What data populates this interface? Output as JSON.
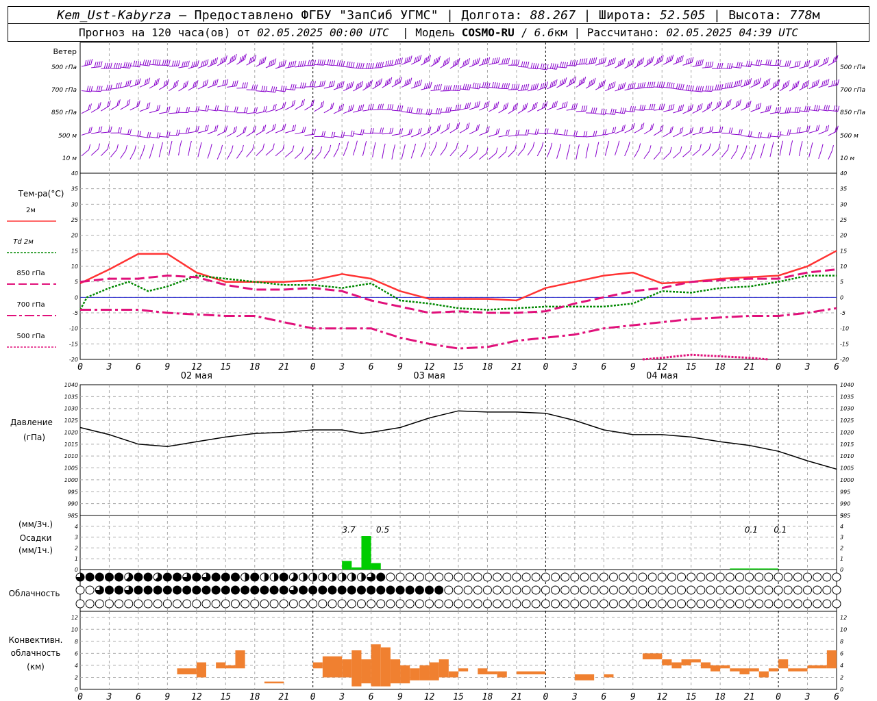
{
  "header": {
    "station": "Kem_Ust-Kabyrza",
    "provider": "Предоставлено ФГБУ \"ЗапСиб УГМС\"",
    "lon_label": "Долгота:",
    "lon": "88.267",
    "lat_label": "Широта:",
    "lat": "52.505",
    "alt_label": "Высота:",
    "alt": "778",
    "alt_unit": "м",
    "forecast_label": "Прогноз на 120 часа(ов) от",
    "forecast_from": "02.05.2025 00:00 UTC",
    "model_label": "Модель",
    "model": "COSMO-RU",
    "model_res": "6.6",
    "model_res_unit": "км",
    "calc_label": "Рассчитано:",
    "calc_time": "02.05.2025 04:39 UTC"
  },
  "panels": {
    "wind": {
      "title": "Ветер",
      "levels": [
        "500 гПа",
        "700 гПа",
        "850 гПа",
        "500  м",
        "10   м"
      ]
    },
    "temp": {
      "title": "Тем-ра(°C)",
      "legend": [
        "2м",
        "Td  2м",
        "850 гПа",
        "700 гПа",
        "500 гПа"
      ],
      "legend_colors": [
        "#ff3333",
        "#008800",
        "#e0107a",
        "#e0107a",
        "#e0107a"
      ]
    },
    "pressure": {
      "title1": "Давление",
      "title2": "(гПа)"
    },
    "precip": {
      "title1": "(мм/3ч.)",
      "title2": "Осадки",
      "title3": "(мм/1ч.)",
      "annotations": [
        "3.7",
        "0.5",
        "0.1",
        "0.1"
      ]
    },
    "cloud": {
      "title": "Облачность"
    },
    "conv": {
      "title1": "Конвективн.",
      "title2": "облачность",
      "title3": "(км)"
    }
  },
  "x_axis": {
    "hour_labels": [
      "0",
      "3",
      "6",
      "9",
      "12",
      "15",
      "18",
      "21",
      "0",
      "3",
      "6",
      "9",
      "12",
      "15",
      "18",
      "21",
      "0",
      "3",
      "6",
      "9",
      "12",
      "15",
      "18",
      "21",
      "0",
      "3",
      "6"
    ],
    "day_labels": [
      "02 мая",
      "03 мая",
      "04 мая"
    ]
  },
  "chart_data": [
    {
      "type": "line",
      "title": "Тем-ра(°C)",
      "x_unit": "hours since 02.05.2025 00:00 UTC",
      "ylim": [
        -20,
        40
      ],
      "y_ticks": [
        -20,
        -15,
        -10,
        -5,
        0,
        5,
        10,
        15,
        20,
        25,
        30,
        35,
        40
      ],
      "series": [
        {
          "name": "2м",
          "color": "#ff3333",
          "x": [
            0,
            3,
            6,
            9,
            12,
            15,
            18,
            21,
            24,
            27,
            30,
            33,
            36,
            39,
            42,
            45,
            48,
            51,
            54,
            57,
            60,
            63,
            66,
            69,
            72,
            75,
            78
          ],
          "y": [
            4.5,
            9,
            14,
            14,
            8,
            5,
            5,
            5,
            5.5,
            7.5,
            6,
            2,
            -0.5,
            -0.5,
            -0.5,
            -1,
            3,
            5,
            7,
            8,
            4.5,
            5,
            6,
            6.5,
            7,
            10,
            15
          ]
        },
        {
          "name": "Td  2м",
          "color": "#008800",
          "x": [
            0,
            0.7,
            3,
            5,
            7,
            9,
            12,
            15,
            18,
            21,
            24,
            27,
            30,
            33,
            36,
            39,
            42,
            45,
            48,
            51,
            54,
            57,
            60,
            63,
            66,
            69,
            72,
            75,
            78
          ],
          "y": [
            -4,
            0,
            3,
            5,
            2,
            3.5,
            7,
            6,
            5,
            4,
            4,
            3,
            4.5,
            -1,
            -2,
            -3.5,
            -4,
            -3.5,
            -3,
            -3,
            -3,
            -2,
            2,
            1.5,
            3,
            3.5,
            5,
            7,
            7
          ]
        },
        {
          "name": "850 гПа",
          "color": "#e0107a",
          "x": [
            0,
            3,
            6,
            9,
            12,
            15,
            18,
            21,
            24,
            27,
            30,
            33,
            36,
            39,
            42,
            45,
            48,
            51,
            54,
            57,
            60,
            63,
            66,
            69,
            72,
            75,
            78
          ],
          "y": [
            5,
            6,
            6,
            7,
            6.5,
            4,
            2.5,
            2.5,
            3,
            2,
            -1,
            -3,
            -5,
            -4.5,
            -5,
            -5,
            -4.5,
            -2,
            0,
            2,
            3,
            5,
            5.5,
            6,
            6,
            8,
            9
          ]
        },
        {
          "name": "700 гПа",
          "color": "#e0107a",
          "x": [
            0,
            3,
            6,
            9,
            12,
            15,
            18,
            21,
            24,
            27,
            30,
            33,
            36,
            39,
            42,
            45,
            48,
            51,
            54,
            57,
            60,
            63,
            66,
            69,
            72,
            75,
            78
          ],
          "y": [
            -4,
            -4,
            -4,
            -5,
            -5.5,
            -6,
            -6,
            -8,
            -10,
            -10,
            -10,
            -13,
            -15,
            -16.5,
            -16,
            -14,
            -13,
            -12,
            -10,
            -9,
            -8,
            -7,
            -6.5,
            -6,
            -6,
            -5,
            -3.5
          ]
        },
        {
          "name": "500 гПа",
          "color": "#e0107a",
          "x": [
            58,
            60,
            63,
            66,
            69,
            71
          ],
          "y": [
            -20,
            -19.5,
            -18.5,
            -19,
            -19.5,
            -20
          ]
        }
      ]
    },
    {
      "type": "line",
      "title": "Давление",
      "ylabel": "(гПа)",
      "ylim": [
        985,
        1040
      ],
      "y_ticks": [
        985,
        990,
        995,
        1000,
        1005,
        1010,
        1015,
        1020,
        1025,
        1030,
        1035,
        1040
      ],
      "series": [
        {
          "name": "",
          "color": "#000000",
          "x": [
            0,
            3,
            6,
            9,
            12,
            15,
            18,
            21,
            24,
            27,
            29,
            30,
            33,
            36,
            39,
            42,
            45,
            48,
            51,
            54,
            57,
            60,
            63,
            66,
            69,
            72,
            75,
            78
          ],
          "y": [
            1022,
            1019,
            1015,
            1014,
            1016,
            1018,
            1019.5,
            1020,
            1021,
            1021,
            1019.5,
            1020,
            1022,
            1026,
            1029,
            1028.5,
            1028.5,
            1028,
            1025,
            1021,
            1019,
            1019,
            1018,
            1016,
            1014.5,
            1012,
            1008,
            1004.5
          ]
        }
      ]
    },
    {
      "type": "bar",
      "title": "Осадки",
      "ylim": [
        0,
        5
      ],
      "y_ticks": [
        0,
        1,
        2,
        3,
        4,
        5
      ],
      "series": [
        {
          "name": "",
          "color": "#00cc00",
          "x": [
            27.5,
            28.5,
            29.5,
            30.5,
            67.5,
            68.5,
            69.5,
            70.5,
            71.5
          ],
          "y": [
            0.8,
            0.2,
            3.1,
            0.6,
            0.1,
            0.1,
            0.1,
            0.1,
            0.1
          ]
        }
      ]
    },
    {
      "type": "bar",
      "title": "Конвективн. облачность",
      "ylabel": "(км)",
      "ylim": [
        0,
        13
      ],
      "y_ticks": [
        0,
        2,
        4,
        6,
        8,
        10,
        12
      ],
      "series": [
        {
          "name": "",
          "color": "#f08030",
          "bars": [
            [
              10,
              12,
              2.5,
              3.5
            ],
            [
              12,
              13,
              2,
              4.5
            ],
            [
              14,
              15,
              3.5,
              4.5
            ],
            [
              15,
              16,
              3.5,
              4
            ],
            [
              16,
              17,
              3.5,
              6.5
            ],
            [
              19,
              21,
              1,
              1.3
            ],
            [
              24,
              25,
              3.5,
              4.5
            ],
            [
              25,
              27,
              2,
              5.5
            ],
            [
              27,
              28,
              2,
              5
            ],
            [
              28,
              29,
              0.5,
              6.5
            ],
            [
              29,
              30,
              1,
              5
            ],
            [
              30,
              31,
              0.5,
              7.5
            ],
            [
              31,
              32,
              0.5,
              7
            ],
            [
              32,
              33,
              1,
              5
            ],
            [
              33,
              34,
              1,
              4
            ],
            [
              34,
              35,
              1.5,
              3.5
            ],
            [
              35,
              36,
              1.5,
              4
            ],
            [
              36,
              37,
              1.5,
              4.5
            ],
            [
              37,
              38,
              2,
              5
            ],
            [
              38,
              39,
              2,
              3
            ],
            [
              39,
              40,
              3,
              3.5
            ],
            [
              41,
              42,
              2.5,
              3.5
            ],
            [
              42,
              43,
              2.5,
              3
            ],
            [
              43,
              44,
              2,
              3
            ],
            [
              45,
              48,
              2.5,
              3
            ],
            [
              51,
              53,
              1.5,
              2.5
            ],
            [
              54,
              55,
              2,
              2.5
            ],
            [
              58,
              60,
              5,
              6
            ],
            [
              60,
              61,
              4,
              5
            ],
            [
              61,
              62,
              3.5,
              4.5
            ],
            [
              62,
              63,
              4,
              5
            ],
            [
              63,
              64,
              4.5,
              5
            ],
            [
              64,
              65,
              3.5,
              4.5
            ],
            [
              65,
              66,
              3,
              4
            ],
            [
              66,
              67,
              3.5,
              4
            ],
            [
              67,
              68,
              3,
              3.5
            ],
            [
              68,
              69,
              2.5,
              3.5
            ],
            [
              69,
              70,
              3,
              3.5
            ],
            [
              70,
              71,
              2,
              3
            ],
            [
              71,
              72,
              3,
              3.5
            ],
            [
              72,
              73,
              3.5,
              5
            ],
            [
              73,
              75,
              3,
              3.5
            ],
            [
              75,
              77,
              3.5,
              4
            ],
            [
              77,
              78,
              3.5,
              6.5
            ]
          ]
        }
      ]
    },
    {
      "type": "table",
      "title": "Облачность",
      "note": "cloud cover octas per hour for low / middle / high rows (0=clear, 8=overcast)",
      "rows": [
        {
          "name": "high",
          "hours_from": 0,
          "octas": [
            6,
            8,
            8,
            8,
            8,
            5,
            8,
            8,
            5,
            8,
            8,
            6,
            8,
            6,
            8,
            8,
            8,
            4,
            8,
            4,
            4,
            8,
            5,
            4,
            4,
            4,
            4,
            4,
            4,
            4,
            6,
            8,
            0,
            0,
            0,
            0,
            0,
            0,
            0,
            0,
            0,
            0,
            0,
            0,
            0,
            0,
            0,
            0,
            0,
            0,
            0,
            0,
            0,
            0,
            0,
            0,
            0,
            0,
            0,
            0,
            0,
            0,
            0,
            0,
            0,
            0,
            0,
            0,
            0,
            0,
            0,
            0,
            0,
            0,
            0,
            0,
            0,
            0,
            0
          ]
        },
        {
          "name": "middle",
          "hours_from": 0,
          "octas": [
            0,
            0,
            6,
            8,
            8,
            6,
            8,
            8,
            8,
            8,
            8,
            8,
            8,
            8,
            8,
            8,
            8,
            8,
            8,
            8,
            8,
            8,
            6,
            8,
            8,
            8,
            8,
            8,
            8,
            8,
            8,
            8,
            8,
            8,
            8,
            8,
            8,
            8,
            0,
            0,
            0,
            0,
            0,
            0,
            0,
            0,
            0,
            0,
            0,
            0,
            0,
            0,
            0,
            0,
            0,
            0,
            0,
            0,
            0,
            0,
            0,
            0,
            0,
            0,
            0,
            0,
            0,
            0,
            0,
            0,
            0,
            0,
            0,
            0,
            0,
            0,
            0,
            0,
            0
          ]
        },
        {
          "name": "low",
          "hours_from": 0,
          "octas": [
            0,
            0,
            0,
            0,
            0,
            0,
            0,
            0,
            0,
            0,
            0,
            0,
            0,
            0,
            0,
            0,
            0,
            0,
            0,
            0,
            0,
            0,
            0,
            0,
            0,
            0,
            0,
            0,
            0,
            0,
            0,
            0,
            0,
            0,
            0,
            0,
            0,
            0,
            0,
            0,
            0,
            0,
            0,
            0,
            0,
            0,
            0,
            0,
            0,
            0,
            0,
            0,
            0,
            0,
            0,
            0,
            0,
            0,
            0,
            0,
            0,
            0,
            0,
            0,
            0,
            0,
            0,
            0,
            0,
            0,
            0,
            0,
            0,
            0,
            0,
            0,
            0,
            0,
            0
          ]
        }
      ]
    }
  ]
}
